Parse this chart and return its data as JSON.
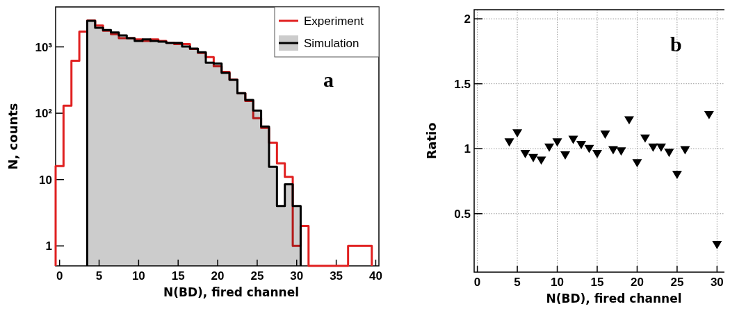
{
  "chart_data": [
    {
      "type": "histogram",
      "xlabel": "N(BD), fired channel",
      "ylabel": "N, counts",
      "log": "y",
      "legend": "top right",
      "grid": false,
      "annotations": [
        "a"
      ],
      "bins": [
        -0.5,
        0.5,
        1.5,
        2.5,
        3.5,
        4.5,
        5.5,
        6.5,
        7.5,
        8.5,
        9.5,
        10.5,
        11.5,
        12.5,
        13.5,
        14.5,
        15.5,
        16.5,
        17.5,
        18.5,
        19.5,
        20.5,
        21.5,
        22.5,
        23.5,
        24.5,
        25.5,
        26.5,
        27.5,
        28.5,
        29.5,
        30.5,
        31.5,
        32.5,
        33.5,
        34.5,
        35.5,
        36.5,
        37.5,
        38.5,
        39.5
      ],
      "xlim": [
        -0.5,
        40.4
      ],
      "xticks": [
        0,
        5,
        10,
        15,
        20,
        25,
        30,
        35,
        40
      ],
      "ylim": [
        0.5,
        4000
      ],
      "yticks": [
        1,
        10,
        {
          "value": 100,
          "label": "10²"
        },
        {
          "value": 1000,
          "label": "10³"
        }
      ],
      "series": [
        {
          "name": "Experiment",
          "color": "#e02020",
          "values": [
            16,
            130,
            620,
            1700,
            2500,
            2100,
            1750,
            1550,
            1350,
            1350,
            1300,
            1230,
            1300,
            1230,
            1150,
            1100,
            1100,
            930,
            810,
            700,
            510,
            420,
            320,
            200,
            153,
            84,
            60,
            36,
            17.6,
            11,
            1,
            2,
            null,
            null,
            null,
            null,
            null,
            1,
            1,
            1
          ]
        },
        {
          "name": "Simulation",
          "color": "#000000",
          "bins": [
            3.5,
            4.5,
            5.5,
            6.5,
            7.5,
            8.5,
            9.5,
            10.5,
            11.5,
            12.5,
            13.5,
            14.5,
            15.5,
            16.5,
            17.5,
            18.5,
            19.5,
            20.5,
            21.5,
            22.5,
            23.5,
            24.5,
            25.5,
            26.5,
            27.5,
            28.5,
            29.5,
            30.5
          ],
          "values": [
            2470,
            1940,
            1800,
            1650,
            1490,
            1350,
            1230,
            1300,
            1230,
            1200,
            1150,
            1150,
            1010,
            940,
            830,
            577,
            560,
            405,
            318,
            200,
            158,
            110,
            63,
            15.6,
            4,
            8.5,
            4
          ]
        }
      ]
    },
    {
      "type": "scatter",
      "xlabel": "N(BD), fired channel",
      "ylabel": "Ratio",
      "marker": "triangle",
      "grid": true,
      "annotations": [
        "b"
      ],
      "xlim": [
        -0.4,
        31.1
      ],
      "xticks": [
        0,
        5,
        10,
        15,
        20,
        25,
        30
      ],
      "ylim": [
        0.05,
        2.07
      ],
      "yticks": [
        0.5,
        1,
        1.5,
        2
      ],
      "series": [
        {
          "color": "#000000",
          "x": [
            4,
            5,
            6,
            7,
            8,
            9,
            10,
            11,
            12,
            13,
            14,
            15,
            16,
            17,
            18,
            19,
            20,
            21,
            22,
            23,
            24,
            25,
            26,
            29,
            30
          ],
          "values": [
            1.05,
            1.12,
            0.96,
            0.93,
            0.91,
            1.01,
            1.05,
            0.95,
            1.07,
            1.03,
            1.0,
            0.96,
            1.11,
            0.99,
            0.98,
            1.22,
            0.89,
            1.08,
            1.01,
            1.01,
            0.97,
            0.8,
            0.99,
            1.26,
            0.26
          ]
        }
      ]
    }
  ]
}
